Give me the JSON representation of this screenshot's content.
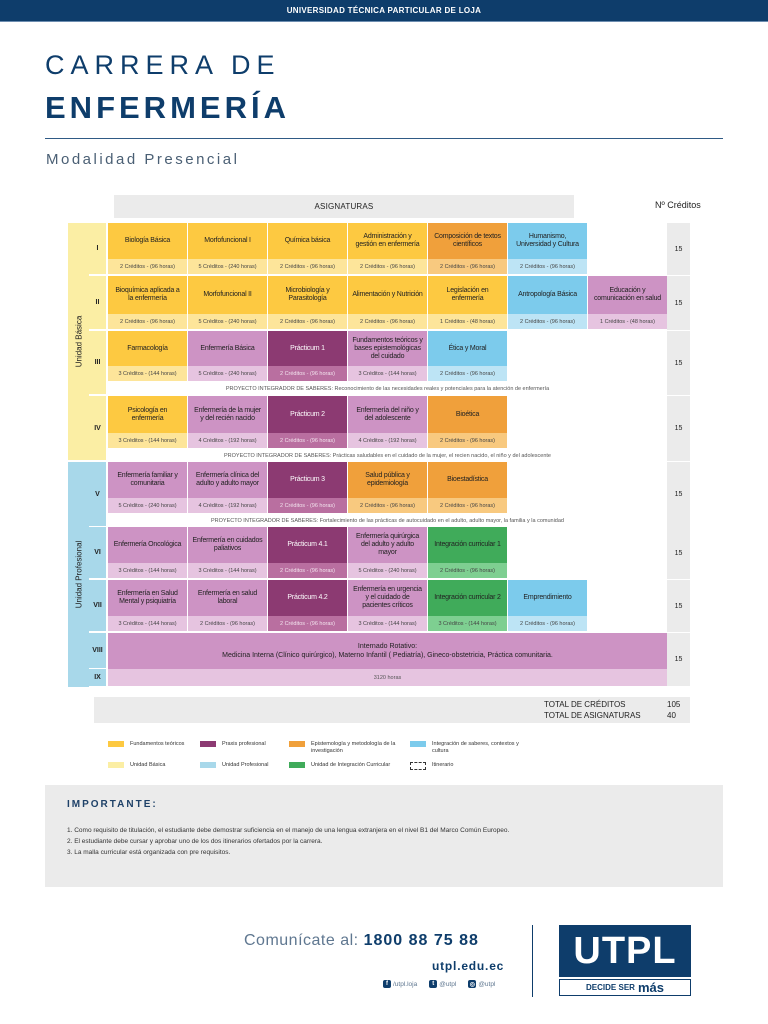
{
  "header": {
    "university": "UNIVERSIDAD TÉCNICA PARTICULAR DE LOJA"
  },
  "title": {
    "line1": "CARRERA DE",
    "line2": "ENFERMERÍA",
    "modality": "Modalidad Presencial"
  },
  "table": {
    "subjects_header": "ASIGNATURAS",
    "credits_header": "Nº Créditos",
    "units": {
      "basic": "Unidad Básica",
      "professional": "Unidad Profesional"
    },
    "levels": [
      {
        "label": "I",
        "credits": "15",
        "subjects": [
          {
            "name": "Biología Básica",
            "credits": "2 Créditos - (96 horas)",
            "type": "ft"
          },
          {
            "name": "Morfofuncional I",
            "credits": "5 Créditos - (240 horas)",
            "type": "ft"
          },
          {
            "name": "Química básica",
            "credits": "2 Créditos - (96 horas)",
            "type": "ft"
          },
          {
            "name": "Administración y gestión en enfermería",
            "credits": "2 Créditos - (96 horas)",
            "type": "ft"
          },
          {
            "name": "Composición de textos científicos",
            "credits": "2 Créditos - (96 horas)",
            "type": "ep"
          },
          {
            "name": "Humanismo, Universidad y Cultura",
            "credits": "2 Créditos - (96 horas)",
            "type": "is"
          }
        ]
      },
      {
        "label": "II",
        "credits": "15",
        "subjects": [
          {
            "name": "Bioquímica aplicada a la enfermería",
            "credits": "2 Créditos - (96 horas)",
            "type": "ft"
          },
          {
            "name": "Morfofuncional II",
            "credits": "5 Créditos - (240 horas)",
            "type": "ft"
          },
          {
            "name": "Microbiología y Parasitología",
            "credits": "2 Créditos - (96 horas)",
            "type": "ft"
          },
          {
            "name": "Alimentación y Nutrición",
            "credits": "2 Créditos - (96 horas)",
            "type": "ft"
          },
          {
            "name": "Legislación en enfermería",
            "credits": "1 Créditos - (48 horas)",
            "type": "ft"
          },
          {
            "name": "Antropología Básica",
            "credits": "2 Créditos - (96 horas)",
            "type": "is"
          },
          {
            "name": "Educación y comunicación en salud",
            "credits": "1 Créditos - (48 horas)",
            "type": "lila"
          }
        ]
      },
      {
        "label": "III",
        "credits": "15",
        "subjects": [
          {
            "name": "Farmacología",
            "credits": "3 Créditos - (144 horas)",
            "type": "ft"
          },
          {
            "name": "Enfermería Básica",
            "credits": "5 Créditos - (240 horas)",
            "type": "lila"
          },
          {
            "name": "Prácticum 1",
            "credits": "2 Créditos - (96 horas)",
            "type": "pp"
          },
          {
            "name": "Fundamentos teóricos y bases epistemológicas del cuidado",
            "credits": "3 Créditos - (144 horas)",
            "type": "lila"
          },
          {
            "name": "Ética y Moral",
            "credits": "2 Créditos - (96 horas)",
            "type": "is"
          }
        ]
      },
      {
        "label": "IV",
        "credits": "15",
        "subjects": [
          {
            "name": "Psicología en enfermería",
            "credits": "3 Créditos - (144 horas)",
            "type": "ft"
          },
          {
            "name": "Enfermería de la mujer y del recién nacido",
            "credits": "4 Créditos - (192 horas)",
            "type": "lila"
          },
          {
            "name": "Prácticum 2",
            "credits": "2 Créditos - (96 horas)",
            "type": "pp"
          },
          {
            "name": "Enfermería del niño y del adolescente",
            "credits": "4 Créditos - (192 horas)",
            "type": "lila"
          },
          {
            "name": "Bioética",
            "credits": "2 Créditos - (96 horas)",
            "type": "ep"
          }
        ]
      },
      {
        "label": "V",
        "credits": "15",
        "subjects": [
          {
            "name": "Enfermería familiar y comunitaria",
            "credits": "5 Créditos - (240 horas)",
            "type": "lila"
          },
          {
            "name": "Enfermería clínica del adulto y adulto mayor",
            "credits": "4 Créditos - (192 horas)",
            "type": "lila"
          },
          {
            "name": "Prácticum 3",
            "credits": "2 Créditos - (96 horas)",
            "type": "pp"
          },
          {
            "name": "Salud pública y epidemiología",
            "credits": "2 Créditos - (96 horas)",
            "type": "ep"
          },
          {
            "name": "Bioestadística",
            "credits": "2 Créditos - (96 horas)",
            "type": "ep"
          }
        ]
      },
      {
        "label": "VI",
        "credits": "15",
        "subjects": [
          {
            "name": "Enfermería Oncológica",
            "credits": "3 Créditos - (144 horas)",
            "type": "lila"
          },
          {
            "name": "Enfermería en cuidados paliativos",
            "credits": "3 Créditos - (144 horas)",
            "type": "lila"
          },
          {
            "name": "Prácticum 4.1",
            "credits": "2 Créditos - (96 horas)",
            "type": "pp"
          },
          {
            "name": "Enfermería quirúrgica del adulto y adulto mayor",
            "credits": "5 Créditos - (240 horas)",
            "type": "lila"
          },
          {
            "name": "Integración curricular 1",
            "credits": "2 Créditos - (96 horas)",
            "type": "ic"
          }
        ]
      },
      {
        "label": "VII",
        "credits": "15",
        "subjects": [
          {
            "name": "Enfermería en Salud Mental y psiquiatría",
            "credits": "3 Créditos - (144 horas)",
            "type": "lila"
          },
          {
            "name": "Enfermería en salud laboral",
            "credits": "2 Créditos - (96 horas)",
            "type": "lila"
          },
          {
            "name": "Prácticum 4.2",
            "credits": "2 Créditos - (96 horas)",
            "type": "pp"
          },
          {
            "name": "Enfermería en urgencia y el cuidado de pacientes críticos",
            "credits": "3 Créditos - (144 horas)",
            "type": "lila"
          },
          {
            "name": "Integración curricular 2",
            "credits": "3 Créditos - (144 horas)",
            "type": "ic"
          },
          {
            "name": "Emprendimiento",
            "credits": "2 Créditos - (96 horas)",
            "type": "is"
          }
        ]
      }
    ],
    "integrative_projects": [
      "PROYECTO INTEGRADOR DE SABERES: Reconocimiento de las necesidades reales y potenciales para la atención de enfermería",
      "PROYECTO INTEGRADOR DE SABERES: Prácticas saludables en el cuidado de la mujer, el recien nacido, el niño y del adolescente",
      "PROYECTO INTEGRADOR DE SABERES: Fortalecimiento de las prácticas de autocuidado en el adulto, adulto mayor, la familia y la comunidad"
    ],
    "internship": {
      "levels": [
        "VIII",
        "IX"
      ],
      "title": "Internado Rotativo:",
      "description": "Medicina Interna (Clínico quirúrgico), Materno Infantil ( Pediatría), Gineco-obstetricia, Práctica comunitaria.",
      "hours": "3120 horas",
      "credits": "15"
    },
    "totals": {
      "credits_label": "TOTAL DE CRÉDITOS",
      "credits_value": "105",
      "subjects_label": "TOTAL DE ASIGNATURAS",
      "subjects_value": "40"
    }
  },
  "legend": [
    {
      "label": "Fundamentos teóricos",
      "color": "#fdc941"
    },
    {
      "label": "Praxis profesional",
      "color": "#8c3a72"
    },
    {
      "label": "Epistemología y metodología de la investigación",
      "color": "#f0a03b"
    },
    {
      "label": "Integración de saberes, contextos y cultura",
      "color": "#7ccbec"
    },
    {
      "label": "Unidad Básica",
      "color": "#fbeea4"
    },
    {
      "label": "Unidad Profesional",
      "color": "#a8d8ea"
    },
    {
      "label": "Unidad de Integración Curricular",
      "color": "#40ab5a"
    },
    {
      "label": "Itinerario",
      "color": "dashed"
    }
  ],
  "important": {
    "title": "IMPORTANTE:",
    "items": [
      "1. Como requisito de titulación, el estudiante debe demostrar suficiencia en el manejo de una lengua extranjera en el nivel B1 del Marco Común Europeo.",
      "2. El estudiante debe cursar y aprobar uno de los dos itinerarios ofertados por la carrera.",
      "3. La malla curricular está organizada con pre requisitos."
    ]
  },
  "footer": {
    "contact_label": "Comunícate al:",
    "phone": "1800 88 75 88",
    "website": "utpl.edu.ec",
    "social": [
      {
        "icon": "facebook-icon",
        "glyph": "f",
        "handle": "/utpl.loja"
      },
      {
        "icon": "twitter-icon",
        "glyph": "t",
        "handle": "@utpl"
      },
      {
        "icon": "instagram-icon",
        "glyph": "◎",
        "handle": "@utpl"
      }
    ],
    "logo": {
      "text": "UTPL",
      "tagline_a": "DECIDE SER",
      "tagline_b": "más"
    }
  },
  "colors": {
    "brand": "#0e3d6b",
    "fundamentos": "#fdc941",
    "praxis": "#8c3a72",
    "epistemologia": "#f0a03b",
    "integracion_saberes": "#7ccbec",
    "complementario": "#cd93c4",
    "integracion_curricular": "#40ab5a"
  }
}
